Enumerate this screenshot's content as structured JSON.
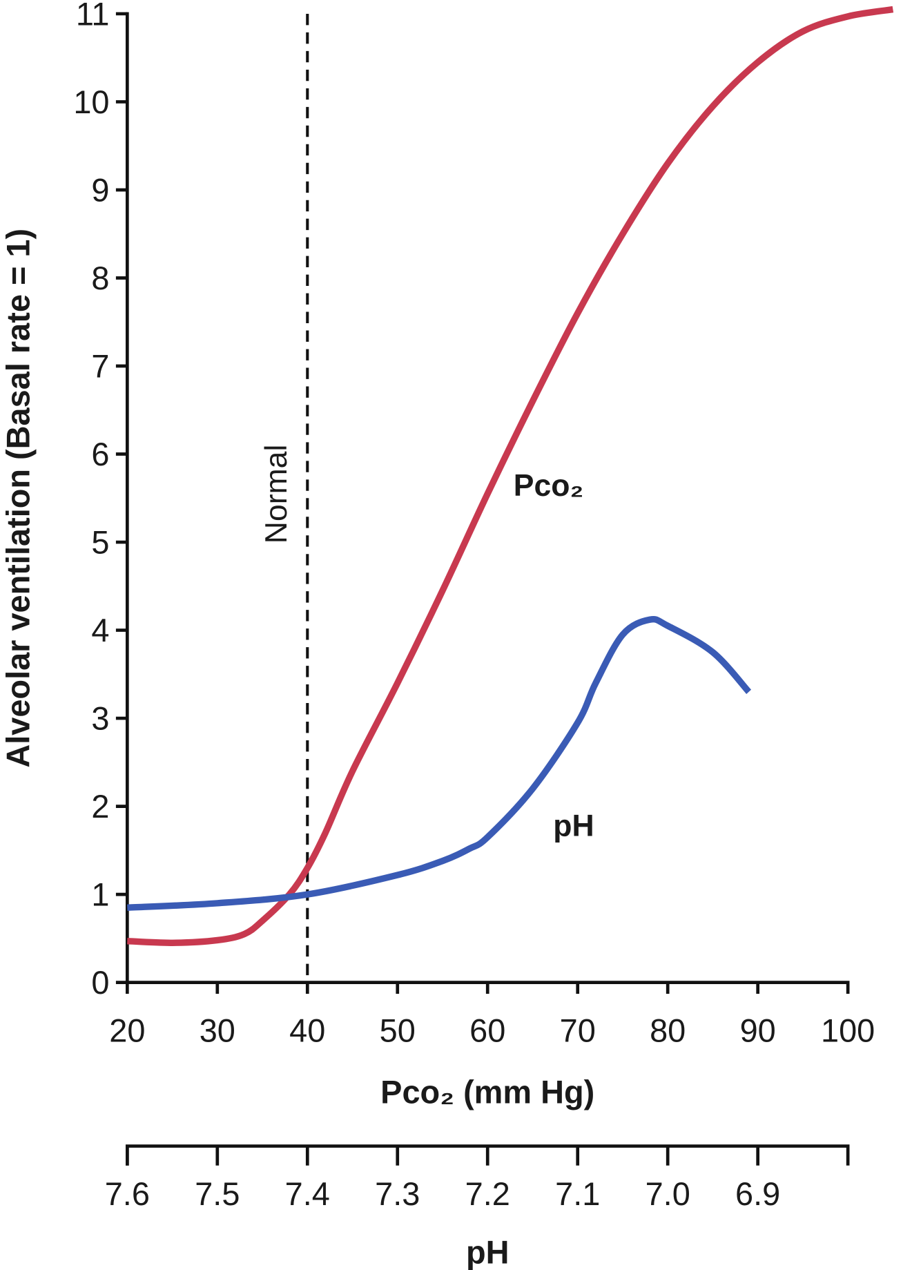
{
  "chart_data": {
    "type": "line",
    "x_label": "Pco₂ (mm Hg)",
    "y_label": "Alveolar ventilation (Basal rate = 1)",
    "x2_label": "pH",
    "xlim": [
      20,
      100
    ],
    "xticks": [
      20,
      30,
      40,
      50,
      60,
      70,
      80,
      90,
      100
    ],
    "ylim": [
      0,
      11
    ],
    "yticks": [
      0,
      1,
      2,
      3,
      4,
      5,
      6,
      7,
      8,
      9,
      10,
      11
    ],
    "x2lim": [
      7.6,
      6.8
    ],
    "x2ticks": [
      7.6,
      7.5,
      7.4,
      7.3,
      7.2,
      7.1,
      {
        "value": 7,
        "label": "7.0"
      },
      6.9
    ],
    "normal": {
      "text": "Normal",
      "x": 40
    },
    "series": [
      {
        "name": "Pco₂",
        "color": "#c8394f",
        "x": [
          20,
          25,
          30,
          33,
          35,
          38,
          40,
          42,
          45,
          50,
          55,
          60,
          65,
          70,
          75,
          80,
          85,
          90,
          95,
          100,
          105
        ],
        "values": [
          0.47,
          0.45,
          0.48,
          0.55,
          0.7,
          1.0,
          1.3,
          1.7,
          2.4,
          3.4,
          4.45,
          5.55,
          6.6,
          7.6,
          8.5,
          9.3,
          9.95,
          10.45,
          10.8,
          10.97,
          11.05
        ]
      },
      {
        "name": "pH",
        "color": "#3a5bb5",
        "x": [
          20,
          30,
          40,
          50,
          55,
          58,
          60,
          65,
          70,
          72,
          75,
          78,
          80,
          85,
          89
        ],
        "values": [
          0.85,
          0.9,
          1.0,
          1.22,
          1.38,
          1.52,
          1.65,
          2.2,
          2.95,
          3.4,
          3.95,
          4.12,
          4.05,
          3.75,
          3.3
        ]
      }
    ]
  }
}
